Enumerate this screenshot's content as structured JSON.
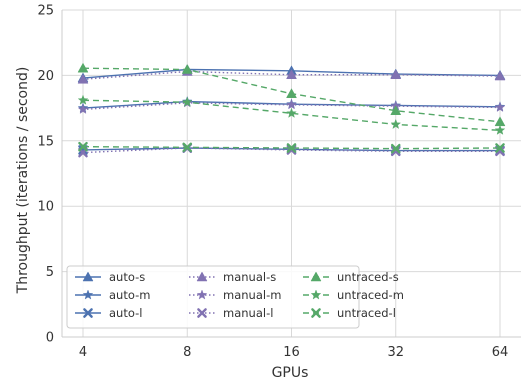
{
  "chart_data": {
    "type": "line",
    "title": "",
    "xlabel": "GPUs",
    "ylabel": "Throughput (iterations / second)",
    "x": [
      4,
      8,
      16,
      32,
      64
    ],
    "x_tick_labels": [
      "4",
      "8",
      "16",
      "32",
      "64"
    ],
    "xscale": "log2",
    "ylim": [
      0,
      25
    ],
    "y_ticks": [
      0,
      5,
      10,
      15,
      20,
      25
    ],
    "grid": true,
    "legend_placement": "lower-left",
    "series": [
      {
        "name": "auto-s",
        "values": [
          19.8,
          20.45,
          20.35,
          20.1,
          20.0
        ],
        "color": "#4c72b0",
        "line": "solid",
        "marker": "triangle"
      },
      {
        "name": "auto-m",
        "values": [
          17.5,
          18.0,
          17.8,
          17.7,
          17.6
        ],
        "color": "#4c72b0",
        "line": "solid",
        "marker": "star"
      },
      {
        "name": "auto-l",
        "values": [
          14.3,
          14.45,
          14.35,
          14.25,
          14.25
        ],
        "color": "#4c72b0",
        "line": "solid",
        "marker": "x"
      },
      {
        "name": "manual-s",
        "values": [
          19.7,
          20.3,
          20.05,
          20.05,
          19.95
        ],
        "color": "#8172b2",
        "line": "dotted",
        "marker": "triangle"
      },
      {
        "name": "manual-m",
        "values": [
          17.4,
          17.9,
          17.75,
          17.65,
          17.55
        ],
        "color": "#8172b2",
        "line": "dotted",
        "marker": "star"
      },
      {
        "name": "manual-l",
        "values": [
          14.1,
          14.45,
          14.3,
          14.2,
          14.2
        ],
        "color": "#8172b2",
        "line": "dotted",
        "marker": "x"
      },
      {
        "name": "untraced-s",
        "values": [
          20.55,
          20.45,
          18.6,
          17.3,
          16.45
        ],
        "color": "#55a868",
        "line": "dashed",
        "marker": "triangle"
      },
      {
        "name": "untraced-m",
        "values": [
          18.1,
          17.95,
          17.1,
          16.25,
          15.8
        ],
        "color": "#55a868",
        "line": "dashed",
        "marker": "star"
      },
      {
        "name": "untraced-l",
        "values": [
          14.55,
          14.5,
          14.45,
          14.4,
          14.45
        ],
        "color": "#55a868",
        "line": "dashed",
        "marker": "x"
      }
    ]
  }
}
